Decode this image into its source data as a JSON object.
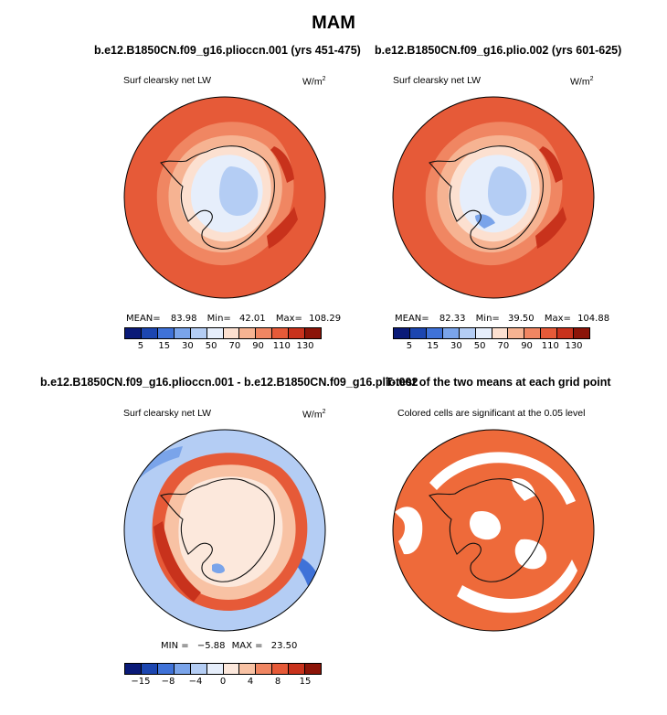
{
  "title": "MAM",
  "colors": {
    "abs_scale": [
      "#0a1a78",
      "#1c46b0",
      "#3f72d8",
      "#7aa4ea",
      "#b4cdf4",
      "#e6eefb",
      "#fce0d0",
      "#f6b392",
      "#f08662",
      "#e65a38",
      "#c8321c",
      "#8c1408"
    ],
    "diff_scale": [
      "#0a1a78",
      "#1c46b0",
      "#3f72d8",
      "#7aa4ea",
      "#b4cdf4",
      "#e6eefb",
      "#fce8dc",
      "#f8c2a4",
      "#f08662",
      "#e65a38",
      "#c8321c",
      "#8c1408"
    ],
    "significant": "#ee6a3a",
    "continent_line": "#111111"
  },
  "chart_data": [
    {
      "type": "heatmap",
      "name": "panel-1",
      "title": "b.e12.B1850CN.f09_g16.plioccn.001 (yrs 451-475)",
      "subtitle": "Surf clearsky net LW",
      "units": "W/m",
      "units_sup": "2",
      "projection": "south polar stereographic",
      "mean_label": "MEAN=",
      "mean": "83.98",
      "min_label": "Min=",
      "min": "42.01",
      "max_label": "Max=",
      "max": "108.29",
      "colorbar_levels": [
        5,
        15,
        30,
        50,
        70,
        90,
        110,
        130
      ],
      "colorbar_tick_labels": [
        "5",
        "15",
        "30",
        "50",
        "70",
        "90",
        "110",
        "130"
      ]
    },
    {
      "type": "heatmap",
      "name": "panel-2",
      "title": "b.e12.B1850CN.f09_g16.plio.002 (yrs 601-625)",
      "subtitle": "Surf clearsky net LW",
      "units": "W/m",
      "units_sup": "2",
      "projection": "south polar stereographic",
      "mean_label": "MEAN=",
      "mean": "82.33",
      "min_label": "Min=",
      "min": "39.50",
      "max_label": "Max=",
      "max": "104.88",
      "colorbar_levels": [
        5,
        15,
        30,
        50,
        70,
        90,
        110,
        130
      ],
      "colorbar_tick_labels": [
        "5",
        "15",
        "30",
        "50",
        "70",
        "90",
        "110",
        "130"
      ]
    },
    {
      "type": "heatmap",
      "name": "panel-3",
      "title": "b.e12.B1850CN.f09_g16.plioccn.001 - b.e12.B1850CN.f09_g16.plio.002",
      "subtitle": "Surf clearsky net LW",
      "units": "W/m",
      "units_sup": "2",
      "projection": "south polar stereographic",
      "min_label": "MIN =",
      "min": "−5.88",
      "max_label": "MAX =",
      "max": "23.50",
      "colorbar_levels": [
        -15,
        -8,
        -4,
        0,
        4,
        8,
        15
      ],
      "colorbar_tick_labels": [
        "−15",
        "−8",
        "−4",
        "0",
        "4",
        "8",
        "15"
      ]
    },
    {
      "type": "heatmap",
      "name": "panel-4",
      "title": "T-test of the two means at each grid point",
      "subtitle": "Colored cells are significant at the 0.05 level",
      "projection": "south polar stereographic",
      "significance_level": 0.05
    }
  ]
}
